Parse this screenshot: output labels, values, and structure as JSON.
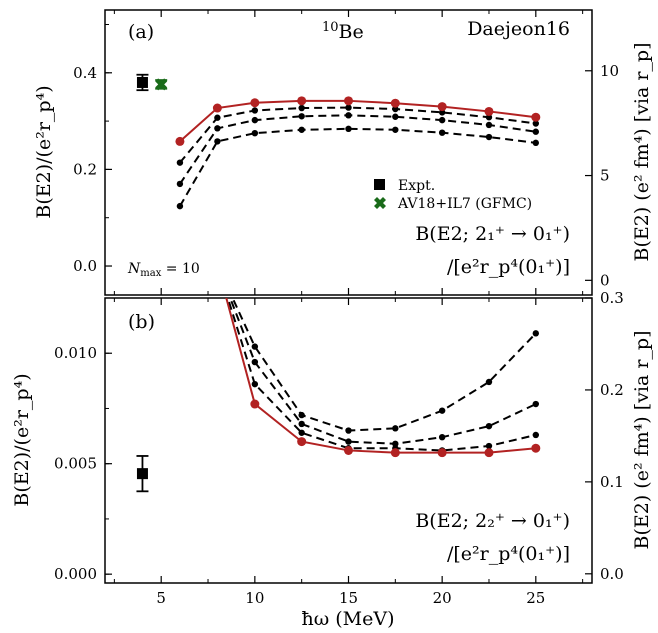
{
  "chart_data": [
    {
      "type": "line",
      "panel_label": "(a)",
      "title": "10Be",
      "title_mass": "10",
      "title_element": "Be",
      "interaction_label": "Daejeon16",
      "nmax_label": "N",
      "nmax_sub": "max",
      "nmax_value": " = 10",
      "transition_label_line1": "B(E2; 2₁⁺ → 0₁⁺)",
      "transition_label_line2": "/[e²r_p⁴(0₁⁺)]",
      "ylabel_left": "B(E2)/(e²r_p⁴)",
      "ylabel_right": "B(E2) (e² fm⁴)  [via r_p]",
      "xlim": [
        2,
        28
      ],
      "ylim": [
        -0.06,
        0.53
      ],
      "yticks": [
        0.0,
        0.2,
        0.4
      ],
      "ytick_labels": [
        "0.0",
        "0.2",
        "0.4"
      ],
      "right_ylim": [
        -0.7,
        12.9
      ],
      "right_yticks": [
        0,
        5,
        10
      ],
      "right_ytick_labels": [
        "0",
        "5",
        "10"
      ],
      "x": [
        6,
        8,
        10,
        12.5,
        15,
        17.5,
        20,
        22.5,
        25
      ],
      "series": [
        {
          "values": [
            0.124,
            0.258,
            0.275,
            0.282,
            0.284,
            0.282,
            0.276,
            0.267,
            0.255
          ],
          "color": "#000000",
          "style": "dashed"
        },
        {
          "values": [
            0.17,
            0.285,
            0.302,
            0.31,
            0.312,
            0.309,
            0.302,
            0.292,
            0.278
          ],
          "color": "#000000",
          "style": "dashed"
        },
        {
          "values": [
            0.214,
            0.307,
            0.322,
            0.327,
            0.328,
            0.325,
            0.318,
            0.308,
            0.295
          ],
          "color": "#000000",
          "style": "dashed"
        },
        {
          "values": [
            0.258,
            0.327,
            0.338,
            0.342,
            0.342,
            0.337,
            0.33,
            0.32,
            0.308
          ],
          "color": "#b22222",
          "style": "solid"
        }
      ],
      "legend": [
        {
          "label": "Expt.",
          "color": "#000000",
          "marker": "square"
        },
        {
          "label": "AV18+IL7 (GFMC)",
          "color": "#1a6b1a",
          "marker": "x"
        }
      ],
      "expt": {
        "x": 4,
        "y": 0.38,
        "err": 0.016
      },
      "gfmc": {
        "x": 5,
        "y": 0.376,
        "err": 0.009
      }
    },
    {
      "type": "line",
      "panel_label": "(b)",
      "transition_label_line1": "B(E2; 2₂⁺ → 0₁⁺)",
      "transition_label_line2": "/[e²r_p⁴(0₁⁺)]",
      "ylabel_left": "B(E2)/(e²r_p⁴)",
      "ylabel_right": "B(E2) (e² fm⁴)  [via r_p]",
      "xlabel": "ħω (MeV)",
      "xlim": [
        2,
        28
      ],
      "xticks": [
        5,
        10,
        15,
        20,
        25
      ],
      "xtick_labels": [
        "5",
        "10",
        "15",
        "20",
        "25"
      ],
      "ylim": [
        -0.0004,
        0.0125
      ],
      "yticks": [
        0.0,
        0.005,
        0.01
      ],
      "ytick_labels": [
        "0.000",
        "0.005",
        "0.010"
      ],
      "right_ylim": [
        -0.01,
        0.3
      ],
      "right_yticks": [
        0.0,
        0.1,
        0.2,
        0.3
      ],
      "right_ytick_labels": [
        "0.0",
        "0.1",
        "0.2",
        "0.3"
      ],
      "x": [
        8,
        10,
        12.5,
        15,
        17.5,
        20,
        22.5,
        25
      ],
      "series": [
        {
          "values": [
            0.014,
            0.0103,
            0.0072,
            0.0065,
            0.0066,
            0.0074,
            0.0087,
            0.0109
          ],
          "color": "#000000",
          "style": "dashed"
        },
        {
          "values": [
            0.014,
            0.0096,
            0.0068,
            0.006,
            0.0059,
            0.0062,
            0.0067,
            0.0077
          ],
          "color": "#000000",
          "style": "dashed"
        },
        {
          "values": [
            0.014,
            0.0086,
            0.0064,
            0.0057,
            0.0057,
            0.0056,
            0.0058,
            0.0063
          ],
          "color": "#000000",
          "style": "dashed"
        },
        {
          "values": [
            0.014,
            0.0077,
            0.006,
            0.0056,
            0.0055,
            0.0055,
            0.0055,
            0.0057
          ],
          "color": "#b22222",
          "style": "solid"
        }
      ],
      "expt": {
        "x": 4,
        "y": 0.00455,
        "err": 0.0008
      }
    }
  ]
}
